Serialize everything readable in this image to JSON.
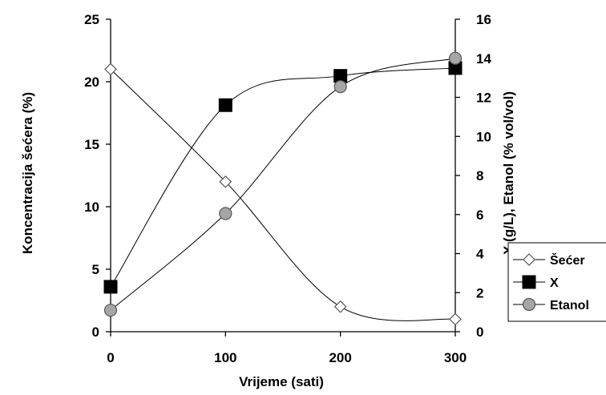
{
  "chart_data": {
    "type": "line",
    "x": [
      0,
      100,
      200,
      300
    ],
    "xlabel": "Vrijeme (sati)",
    "ylabel_left": "Koncentracija šećera (%)",
    "ylabel_right": "X (g/L), Etanol (% vol/vol)",
    "xlim": [
      0,
      300
    ],
    "ylim_left": [
      0,
      25
    ],
    "ylim_right": [
      0,
      16
    ],
    "x_ticks": [
      "0",
      "100",
      "200",
      "300"
    ],
    "y_ticks_left": [
      "0",
      "5",
      "10",
      "15",
      "20",
      "25"
    ],
    "y_ticks_right": [
      "0",
      "2",
      "4",
      "6",
      "8",
      "10",
      "12",
      "14",
      "16"
    ],
    "grid": false,
    "legend_position": "right",
    "series": [
      {
        "name": "Šećer",
        "axis": "left",
        "marker": "diamond-open",
        "color": "#000000",
        "values": [
          21,
          12,
          2,
          1
        ]
      },
      {
        "name": "X",
        "axis": "right",
        "marker": "square-filled",
        "color": "#000000",
        "values": [
          2.3,
          11.6,
          13.1,
          13.5
        ]
      },
      {
        "name": "Etanol",
        "axis": "right",
        "marker": "circle-gray",
        "color": "#a6a6a6",
        "values": [
          1.1,
          6.05,
          12.55,
          14.0
        ]
      }
    ]
  }
}
